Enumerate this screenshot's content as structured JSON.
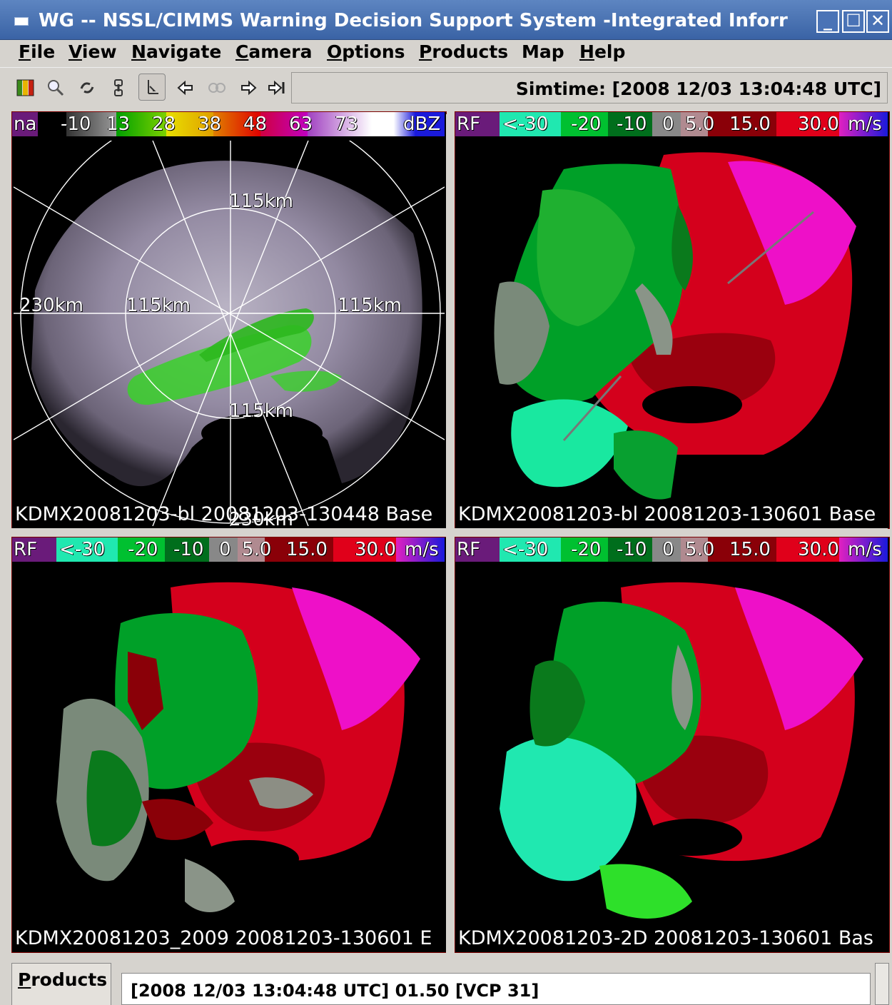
{
  "window": {
    "title": "WG -- NSSL/CIMMS Warning Decision Support System -Integrated Inforr",
    "minimize_glyph": "_",
    "maximize_glyph": "☐",
    "close_glyph": "✕"
  },
  "menu": {
    "file": {
      "u": "F",
      "rest": "ile"
    },
    "view": {
      "u": "V",
      "rest": "iew"
    },
    "navigate": {
      "u": "N",
      "rest": "avigate"
    },
    "camera": {
      "u": "C",
      "rest": "amera"
    },
    "options": {
      "u": "O",
      "rest": "ptions"
    },
    "products": {
      "u": "P",
      "rest": "roducts"
    },
    "map": {
      "u": "",
      "rest": "Map"
    },
    "help": {
      "u": "H",
      "rest": "elp"
    }
  },
  "toolbar": {
    "simtime": "Simtime: [2008 12/03 13:04:48 UTC]",
    "icons": [
      "colormap-icon",
      "magnifier-icon",
      "pan-icon",
      "link-icon",
      "pointer-icon",
      "step-back-icon",
      "loop-icon",
      "step-forward-icon",
      "jump-latest-icon"
    ]
  },
  "colorbars": {
    "reflectivity": {
      "labels": [
        "na",
        "-10",
        "13",
        "28",
        "38",
        "48",
        "63",
        "73",
        "dBZ"
      ]
    },
    "velocity": {
      "labels": [
        "RF",
        "<-30",
        "-20",
        "-10",
        "0",
        "5.0",
        "15.0",
        "30.0",
        "m/s"
      ]
    }
  },
  "panes": [
    {
      "caption": "KDMX20081203-bl 20081203-130448 Base",
      "colorbar": "reflectivity",
      "range_labels": [
        "115km",
        "230km",
        "115km",
        "115km",
        "115km",
        "230km"
      ]
    },
    {
      "caption": "KDMX20081203-bl 20081203-130601 Base",
      "colorbar": "velocity"
    },
    {
      "caption": "KDMX20081203_2009 20081203-130601 E",
      "colorbar": "velocity"
    },
    {
      "caption": "KDMX20081203-2D 20081203-130601 Bas",
      "colorbar": "velocity"
    }
  ],
  "bottom": {
    "tab_underline": "P",
    "tab_rest": "roducts",
    "status": "[2008 12/03 13:04:48 UTC] 01.50 [VCP 31]"
  },
  "colors": {
    "title_bar": "#4a73b6",
    "pane_border": "#7a0000",
    "rf_purple": "#6a1b7a",
    "velocity_away": "#e0001a",
    "velocity_toward": "#00a020",
    "reflectivity_haze": "#9a90a8"
  }
}
